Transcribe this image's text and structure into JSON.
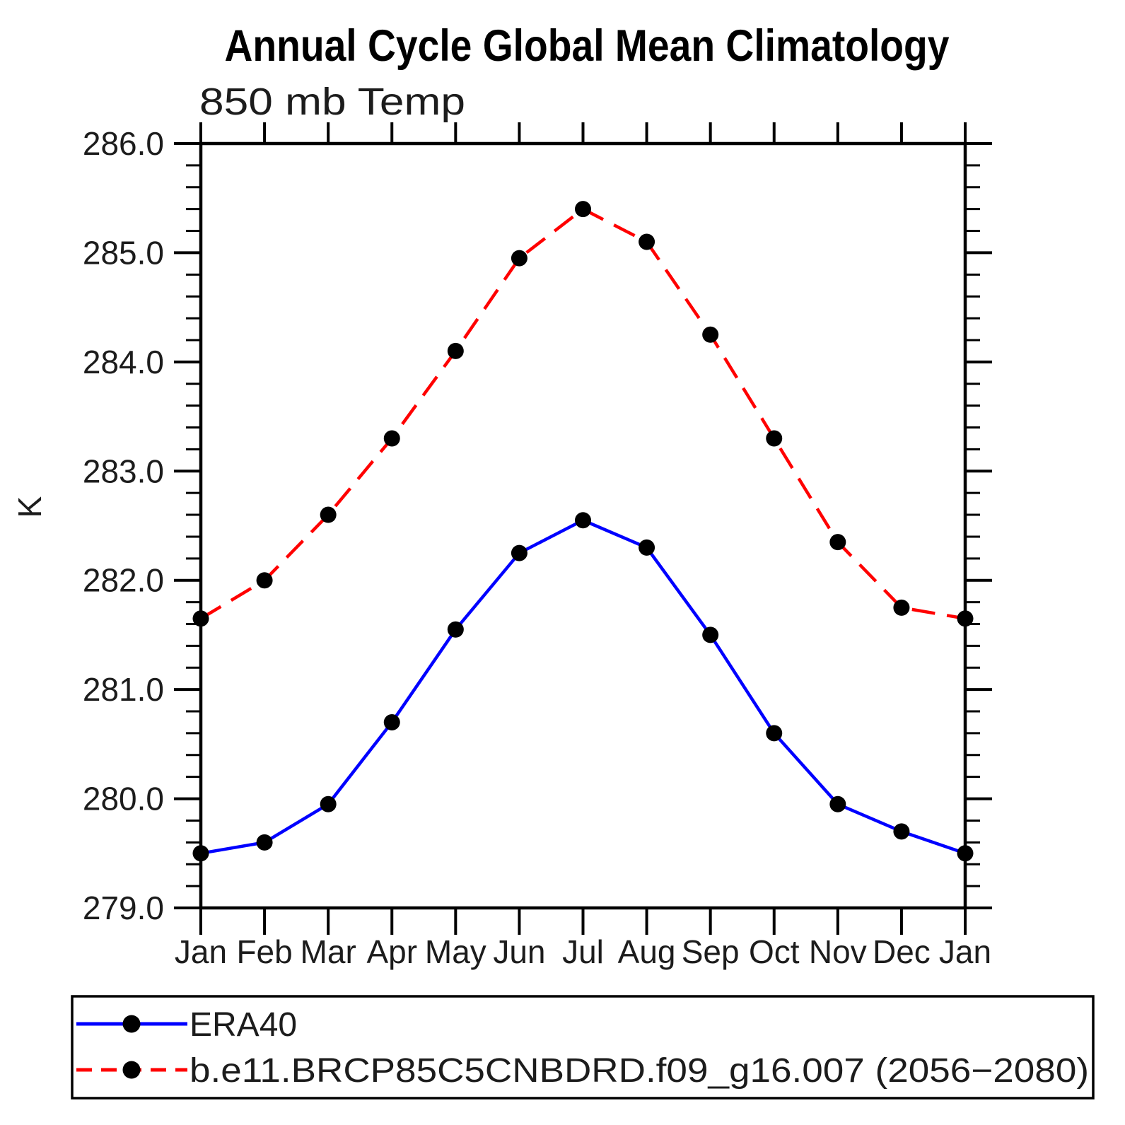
{
  "chart_data": {
    "type": "line",
    "title": "Annual Cycle Global Mean Climatology",
    "subtitle": "850 mb Temp",
    "ylabel": "K",
    "ylim": [
      279.0,
      286.0
    ],
    "ytick_step": 1.0,
    "ytick_minor_step": 0.2,
    "ytick_labels": [
      "286.0",
      "285.0",
      "284.0",
      "283.0",
      "282.0",
      "281.0",
      "280.0",
      "279.0"
    ],
    "categories": [
      "Jan",
      "Feb",
      "Mar",
      "Apr",
      "May",
      "Jun",
      "Jul",
      "Aug",
      "Sep",
      "Oct",
      "Nov",
      "Dec",
      "Jan"
    ],
    "grid": false,
    "legend_position": "bottom-left-box",
    "series": [
      {
        "name": "ERA40",
        "color": "#0000ff",
        "line_style": "solid",
        "marker": "circle",
        "marker_color": "#000000",
        "values": [
          279.5,
          279.6,
          279.95,
          280.7,
          281.55,
          282.25,
          282.55,
          282.3,
          281.5,
          280.6,
          279.95,
          279.7,
          279.5
        ]
      },
      {
        "name": "b.e11.BRCP85C5CNBDRD.f09_g16.007 (2056−2080)",
        "color": "#ff0000",
        "line_style": "dashed",
        "marker": "circle",
        "marker_color": "#000000",
        "values": [
          281.65,
          282.0,
          282.6,
          283.3,
          284.1,
          284.95,
          285.4,
          285.1,
          284.25,
          283.3,
          282.35,
          281.75,
          281.65
        ]
      }
    ]
  }
}
